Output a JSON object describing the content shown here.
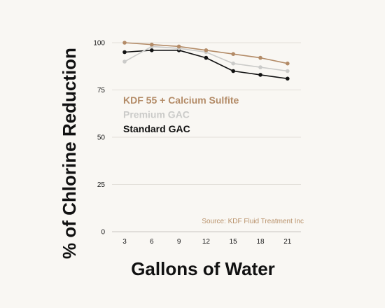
{
  "chart_data": {
    "type": "line",
    "xlabel": "Gallons of Water",
    "ylabel": "% of Chlorine Reduction",
    "x": [
      3,
      6,
      9,
      12,
      15,
      18,
      21
    ],
    "ylim": [
      0,
      100
    ],
    "yticks": [
      0,
      25,
      50,
      75,
      100
    ],
    "grid": true,
    "series": [
      {
        "name": "KDF 55 + Calcium Sulfite",
        "color": "#b38b67",
        "values": [
          100,
          99,
          98,
          96,
          94,
          92,
          89
        ]
      },
      {
        "name": "Premium GAC",
        "color": "#cbcbc9",
        "values": [
          90,
          98,
          97,
          95,
          89,
          87,
          85
        ]
      },
      {
        "name": "Standard GAC",
        "color": "#111111",
        "values": [
          95,
          96,
          96,
          92,
          85,
          83,
          81
        ]
      }
    ],
    "legend_position": "middle-left",
    "annotation": "Source: KDF Fluid Treatment Inc"
  }
}
